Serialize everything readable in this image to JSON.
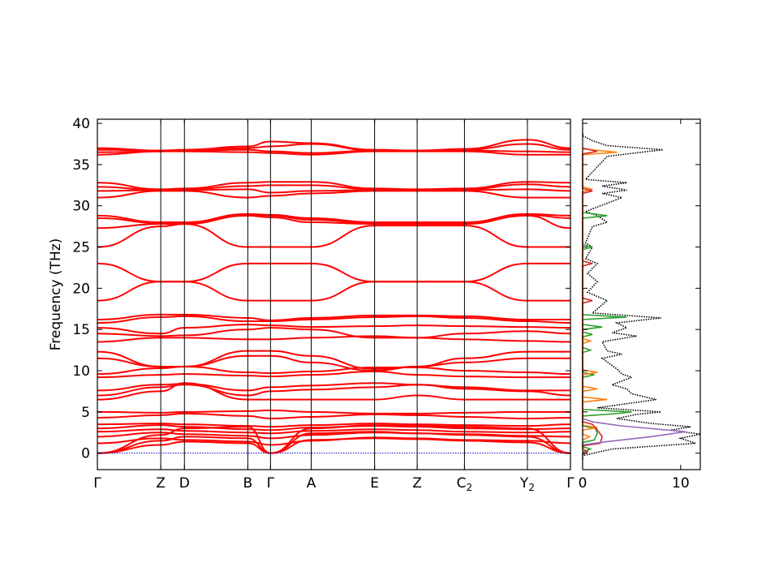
{
  "chart_data": [
    {
      "type": "line",
      "ylabel": "Frequency (THz)",
      "ylim": [
        -2,
        40.5
      ],
      "yticks": [
        0,
        5,
        10,
        15,
        20,
        25,
        30,
        35,
        40
      ],
      "xticks": [
        {
          "label": "Γ",
          "sub": "",
          "pos": 0.0
        },
        {
          "label": "Z",
          "sub": "",
          "pos": 0.134
        },
        {
          "label": "D",
          "sub": "",
          "pos": 0.184
        },
        {
          "label": "B",
          "sub": "",
          "pos": 0.318
        },
        {
          "label": "Γ",
          "sub": "",
          "pos": 0.366
        },
        {
          "label": "A",
          "sub": "",
          "pos": 0.452
        },
        {
          "label": "E",
          "sub": "",
          "pos": 0.586
        },
        {
          "label": "Z",
          "sub": "",
          "pos": 0.676
        },
        {
          "label": "C",
          "sub": "2",
          "pos": 0.776
        },
        {
          "label": "Y",
          "sub": "2",
          "pos": 0.909
        },
        {
          "label": "Γ",
          "sub": "",
          "pos": 1.0
        }
      ],
      "band_color": "#ff0000",
      "zero_line_color": "#0000cc",
      "series": [
        {
          "values": [
            0,
            2.2,
            3.0,
            3.2,
            0,
            3.0,
            3.4,
            3.3,
            3.2,
            3.0,
            0
          ]
        },
        {
          "values": [
            0,
            1.5,
            2.0,
            1.8,
            0,
            2.4,
            2.6,
            2.4,
            2.2,
            2.0,
            0
          ]
        },
        {
          "values": [
            0,
            1.0,
            1.4,
            1.2,
            0,
            1.6,
            1.8,
            1.7,
            1.5,
            1.3,
            0
          ]
        },
        {
          "values": [
            1.2,
            1.8,
            1.6,
            1.4,
            1.0,
            1.5,
            1.9,
            1.8,
            1.6,
            1.5,
            1.2
          ]
        },
        {
          "values": [
            2.0,
            2.5,
            2.3,
            2.1,
            1.8,
            2.2,
            2.5,
            2.4,
            2.3,
            2.1,
            2.0
          ]
        },
        {
          "values": [
            2.6,
            2.9,
            2.7,
            2.5,
            2.4,
            2.7,
            2.9,
            2.8,
            2.6,
            2.5,
            2.6
          ]
        },
        {
          "values": [
            3.0,
            3.4,
            3.2,
            2.9,
            2.8,
            3.1,
            3.3,
            3.2,
            3.0,
            2.9,
            3.0
          ]
        },
        {
          "values": [
            3.5,
            3.6,
            3.5,
            3.3,
            3.2,
            3.4,
            3.6,
            3.5,
            3.4,
            3.3,
            3.5
          ]
        },
        {
          "values": [
            4.3,
            4.6,
            4.8,
            4.5,
            4.2,
            4.4,
            4.7,
            4.6,
            4.4,
            4.2,
            4.3
          ]
        },
        {
          "values": [
            5.0,
            4.9,
            5.0,
            5.1,
            5.2,
            5.0,
            4.8,
            4.8,
            4.9,
            5.0,
            5.0
          ]
        },
        {
          "values": [
            6.5,
            7.5,
            8.5,
            6.5,
            6.5,
            6.5,
            6.5,
            7.0,
            6.5,
            6.5,
            6.5
          ]
        },
        {
          "values": [
            7.0,
            8.0,
            8.3,
            7.0,
            7.5,
            7.7,
            8.0,
            8.3,
            7.8,
            7.5,
            7.0
          ]
        },
        {
          "values": [
            7.6,
            8.3,
            8.4,
            7.6,
            8.0,
            8.2,
            8.5,
            8.3,
            8.0,
            7.6,
            7.6
          ]
        },
        {
          "values": [
            9.2,
            9.5,
            9.6,
            9.4,
            9.3,
            9.5,
            9.9,
            9.5,
            9.3,
            9.2,
            9.2
          ]
        },
        {
          "values": [
            9.6,
            10.3,
            10.5,
            9.8,
            9.7,
            9.9,
            10.4,
            10.4,
            10.0,
            9.8,
            9.6
          ]
        },
        {
          "values": [
            11.5,
            10.5,
            10.5,
            11.8,
            11.8,
            11.0,
            10.0,
            10.5,
            11.0,
            11.5,
            11.5
          ]
        },
        {
          "values": [
            12.3,
            10.5,
            10.5,
            12.4,
            12.4,
            11.8,
            10.2,
            10.5,
            11.5,
            12.3,
            12.3
          ]
        },
        {
          "values": [
            13.5,
            14.0,
            14.0,
            13.8,
            13.8,
            14.0,
            14.2,
            14.0,
            13.8,
            13.6,
            13.5
          ]
        },
        {
          "values": [
            14.5,
            14.2,
            14.3,
            15.0,
            15.2,
            15.0,
            14.0,
            14.0,
            14.5,
            14.8,
            14.5
          ]
        },
        {
          "values": [
            15.2,
            14.5,
            15.2,
            15.6,
            15.5,
            15.3,
            15.4,
            15.5,
            15.4,
            15.3,
            15.2
          ]
        },
        {
          "values": [
            15.8,
            16.5,
            16.6,
            16.0,
            16.0,
            16.2,
            16.5,
            16.6,
            16.4,
            16.0,
            15.8
          ]
        },
        {
          "values": [
            16.2,
            16.8,
            16.8,
            16.4,
            16.1,
            16.4,
            16.7,
            16.7,
            16.6,
            16.2,
            16.2
          ]
        },
        {
          "values": [
            18.5,
            20.8,
            20.8,
            18.5,
            18.5,
            18.5,
            20.8,
            20.8,
            20.8,
            18.5,
            18.5
          ]
        },
        {
          "values": [
            23.0,
            20.8,
            20.8,
            23.0,
            23.0,
            23.0,
            20.8,
            20.8,
            20.8,
            23.0,
            23.0
          ]
        },
        {
          "values": [
            25.0,
            27.5,
            27.8,
            25.0,
            25.0,
            25.0,
            27.6,
            27.6,
            27.6,
            25.0,
            25.0
          ]
        },
        {
          "values": [
            27.3,
            27.8,
            27.8,
            28.8,
            28.6,
            28.0,
            27.8,
            27.8,
            27.8,
            28.8,
            27.3
          ]
        },
        {
          "values": [
            28.5,
            27.9,
            27.9,
            28.9,
            28.8,
            28.3,
            27.9,
            27.9,
            27.9,
            28.9,
            28.5
          ]
        },
        {
          "values": [
            28.8,
            28.0,
            28.0,
            29.0,
            28.9,
            28.5,
            28.0,
            28.0,
            28.0,
            29.0,
            28.8
          ]
        },
        {
          "values": [
            31.0,
            31.8,
            31.8,
            31.0,
            31.2,
            31.5,
            31.8,
            31.8,
            31.8,
            31.0,
            31.0
          ]
        },
        {
          "values": [
            31.8,
            31.9,
            31.9,
            32.0,
            31.6,
            31.8,
            31.9,
            31.9,
            31.9,
            32.0,
            31.8
          ]
        },
        {
          "values": [
            32.3,
            31.9,
            32.0,
            32.4,
            32.5,
            32.5,
            32.0,
            31.9,
            32.0,
            32.6,
            32.3
          ]
        },
        {
          "values": [
            32.8,
            32.0,
            32.1,
            32.8,
            32.9,
            32.9,
            32.1,
            32.0,
            32.1,
            32.9,
            32.8
          ]
        },
        {
          "values": [
            36.2,
            36.6,
            36.6,
            36.5,
            36.4,
            36.2,
            36.6,
            36.6,
            36.6,
            36.2,
            36.2
          ]
        },
        {
          "values": [
            36.5,
            36.6,
            36.7,
            36.8,
            36.6,
            36.4,
            36.7,
            36.7,
            36.7,
            36.6,
            36.5
          ]
        },
        {
          "values": [
            36.8,
            36.7,
            36.7,
            37.0,
            37.2,
            37.5,
            36.7,
            36.7,
            36.8,
            37.5,
            36.8
          ]
        },
        {
          "values": [
            37.0,
            36.7,
            36.8,
            37.2,
            37.8,
            37.6,
            36.8,
            36.7,
            36.9,
            38.0,
            37.0
          ]
        }
      ]
    },
    {
      "type": "line",
      "xlim": [
        0,
        12
      ],
      "xticks": [
        0,
        10
      ],
      "ylim": [
        -2,
        40.5
      ],
      "colors": {
        "total": "#000000",
        "green": "#2ca02c",
        "orange": "#ff7f0e",
        "red": "#d62728",
        "purple": "#9467bd"
      },
      "series": [
        {
          "key": "total",
          "y": [
            -0.3,
            0.5,
            1.2,
            1.8,
            2.3,
            2.8,
            3.2,
            3.6,
            4.2,
            4.7,
            5.0,
            5.5,
            6.5,
            7.2,
            7.8,
            8.3,
            9.2,
            9.6,
            10.2,
            11.5,
            12.0,
            12.4,
            13.5,
            14.2,
            14.6,
            15.2,
            15.8,
            16.4,
            17.0,
            18.5,
            19.5,
            20.8,
            21.8,
            23.0,
            23.6,
            25.0,
            25.5,
            27.5,
            28.0,
            28.8,
            29.3,
            31.0,
            31.5,
            31.9,
            32.4,
            32.8,
            33.2,
            36.0,
            36.5,
            36.8,
            37.3,
            37.9,
            38.5
          ],
          "x": [
            0,
            3.0,
            11.5,
            10.0,
            12.0,
            9.0,
            11.0,
            7.0,
            3.5,
            5.5,
            8.0,
            1.5,
            7.5,
            5.0,
            4.5,
            3.0,
            5.0,
            4.0,
            3.5,
            2.0,
            4.0,
            2.5,
            2.0,
            5.5,
            3.0,
            4.5,
            3.5,
            8.0,
            1.0,
            2.5,
            0.5,
            1.5,
            0.5,
            1.5,
            0.3,
            1.0,
            0.3,
            1.0,
            2.5,
            1.5,
            0.3,
            4.0,
            2.0,
            4.5,
            2.0,
            4.5,
            0.3,
            2.5,
            6.0,
            8.2,
            2.5,
            1.0,
            0
          ]
        },
        {
          "key": "green",
          "y": [
            0.5,
            1.6,
            2.4,
            3.0,
            4.8,
            5.0,
            9.5,
            12.5,
            14.4,
            15.3,
            16.5,
            25.0,
            28.8
          ],
          "x": [
            0.8,
            1.2,
            1.5,
            1.3,
            3.5,
            5.0,
            1.2,
            0.8,
            1.0,
            2.0,
            4.5,
            1.0,
            2.5
          ]
        },
        {
          "key": "orange",
          "y": [
            2.0,
            3.1,
            6.5,
            7.8,
            9.8,
            13.6,
            32.0,
            36.5
          ],
          "x": [
            0.7,
            1.5,
            2.5,
            1.5,
            1.5,
            0.8,
            1.0,
            3.5
          ]
        },
        {
          "key": "red",
          "y": [
            0.2,
            1.2,
            2.0,
            2.8,
            3.5,
            18.5,
            23.0,
            31.8,
            36.6
          ],
          "x": [
            0.5,
            1.8,
            2.0,
            1.5,
            1.0,
            1.0,
            1.0,
            1.0,
            1.5
          ]
        },
        {
          "key": "purple",
          "y": [
            1.4,
            2.0,
            2.6,
            3.3,
            3.8
          ],
          "x": [
            2.5,
            7.0,
            10.5,
            4.0,
            1.0
          ]
        }
      ]
    }
  ]
}
